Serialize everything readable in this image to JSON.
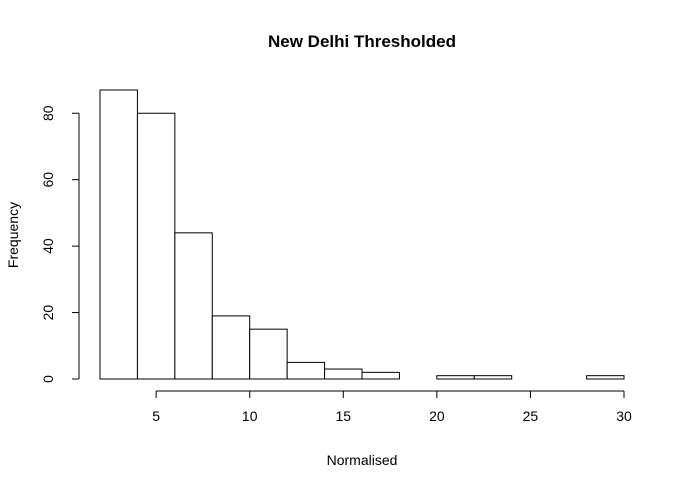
{
  "chart_data": {
    "type": "bar",
    "title": "New Delhi Thresholded",
    "xlabel": "Normalised",
    "ylabel": "Frequency",
    "bins": [
      {
        "x0": 2,
        "x1": 4,
        "value": 87
      },
      {
        "x0": 4,
        "x1": 6,
        "value": 80
      },
      {
        "x0": 6,
        "x1": 8,
        "value": 44
      },
      {
        "x0": 8,
        "x1": 10,
        "value": 19
      },
      {
        "x0": 10,
        "x1": 12,
        "value": 15
      },
      {
        "x0": 12,
        "x1": 14,
        "value": 5
      },
      {
        "x0": 14,
        "x1": 16,
        "value": 3
      },
      {
        "x0": 16,
        "x1": 18,
        "value": 2
      },
      {
        "x0": 18,
        "x1": 20,
        "value": 0
      },
      {
        "x0": 20,
        "x1": 22,
        "value": 1
      },
      {
        "x0": 22,
        "x1": 24,
        "value": 1
      },
      {
        "x0": 24,
        "x1": 26,
        "value": 0
      },
      {
        "x0": 26,
        "x1": 28,
        "value": 0
      },
      {
        "x0": 28,
        "x1": 30,
        "value": 1
      }
    ],
    "xticks": [
      5,
      10,
      15,
      20,
      25,
      30
    ],
    "yticks": [
      0,
      20,
      40,
      60,
      80
    ],
    "xlim": [
      2,
      30
    ],
    "ylim": [
      0,
      87
    ],
    "grid": false,
    "legend": "none",
    "colors": {
      "bar_fill": "#ffffff",
      "bar_stroke": "#000000"
    }
  }
}
